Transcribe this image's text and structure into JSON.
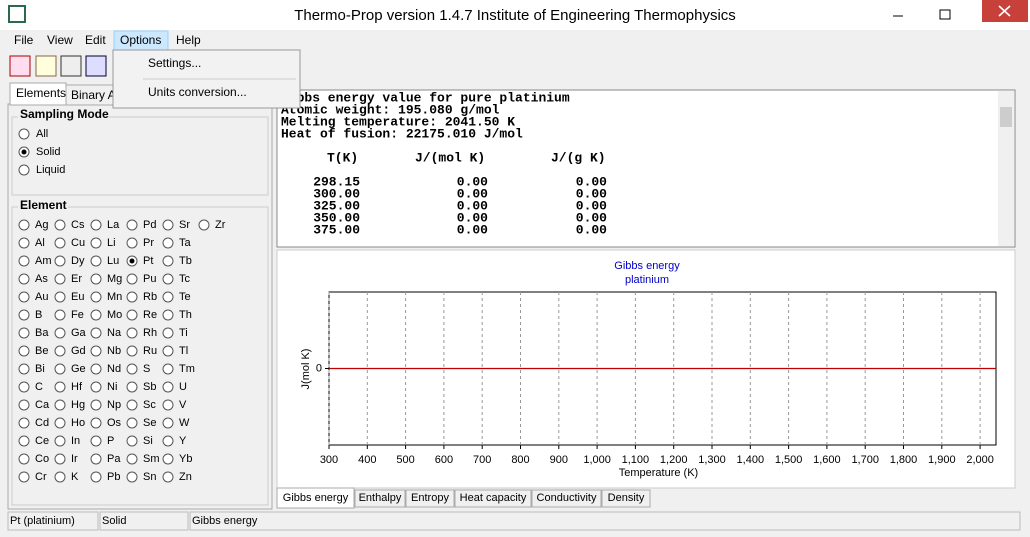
{
  "window": {
    "title": "Thermo-Prop version 1.4.7  Institute of Engineering Thermophysics"
  },
  "menu": [
    "File",
    "View",
    "Edit",
    "Options",
    "Help"
  ],
  "dropdown": [
    "Settings...",
    "Units conversion..."
  ],
  "left_tabs": [
    "Elements",
    "Binary A"
  ],
  "sampling_mode": {
    "title": "Sampling Mode",
    "options": [
      "All",
      "Solid",
      "Liquid"
    ],
    "selected": "Solid"
  },
  "element": {
    "title": "Element",
    "selected": "Pt",
    "rows": [
      [
        "Ag",
        "Cs",
        "La",
        "Pd",
        "Sr",
        "Zr"
      ],
      [
        "Al",
        "Cu",
        "Li",
        "Pr",
        "Ta"
      ],
      [
        "Am",
        "Dy",
        "Lu",
        "Pt",
        "Tb"
      ],
      [
        "As",
        "Er",
        "Mg",
        "Pu",
        "Tc"
      ],
      [
        "Au",
        "Eu",
        "Mn",
        "Rb",
        "Te"
      ],
      [
        "B",
        "Fe",
        "Mo",
        "Re",
        "Th"
      ],
      [
        "Ba",
        "Ga",
        "Na",
        "Rh",
        "Ti"
      ],
      [
        "Be",
        "Gd",
        "Nb",
        "Ru",
        "Tl"
      ],
      [
        "Bi",
        "Ge",
        "Nd",
        "S",
        "Tm"
      ],
      [
        "C",
        "Hf",
        "Ni",
        "Sb",
        "U"
      ],
      [
        "Ca",
        "Hg",
        "Np",
        "Sc",
        "V"
      ],
      [
        "Cd",
        "Ho",
        "Os",
        "Se",
        "W"
      ],
      [
        "Ce",
        "In",
        "P",
        "Si",
        "Y"
      ],
      [
        "Co",
        "Ir",
        "Pa",
        "Sm",
        "Yb"
      ],
      [
        "Cr",
        "K",
        "Pb",
        "Sn",
        "Zn"
      ]
    ]
  },
  "output": {
    "lines": [
      "Gibbs energy value for pure platinium",
      "Atomic weight: 195.080 g/mol",
      "Melting temperature: 2041.50 K",
      "Heat of fusion: 22175.010 J/mol"
    ],
    "table": {
      "header": [
        "T(K)",
        "J/(mol K)",
        "J/(g K)"
      ],
      "rows": [
        [
          "298.15",
          "0.00",
          "0.00"
        ],
        [
          "300.00",
          "0.00",
          "0.00"
        ],
        [
          "325.00",
          "0.00",
          "0.00"
        ],
        [
          "350.00",
          "0.00",
          "0.00"
        ],
        [
          "375.00",
          "0.00",
          "0.00"
        ]
      ]
    }
  },
  "chart_data": {
    "type": "line",
    "title": "Gibbs energy",
    "subtitle": "platinium",
    "xlabel": "Temperature (K)",
    "ylabel": "J(mol K)",
    "x": [
      300,
      2041.5
    ],
    "values": [
      0,
      0
    ],
    "color": "#c00000",
    "grid": "x",
    "xlim": [
      300,
      2041.5
    ],
    "xticks": [
      300,
      400,
      500,
      600,
      700,
      800,
      900,
      {
        "value": 1000,
        "label": "1,000"
      },
      {
        "value": 1100,
        "label": "1,100"
      },
      {
        "value": 1200,
        "label": "1,200"
      },
      {
        "value": 1300,
        "label": "1,300"
      },
      {
        "value": 1400,
        "label": "1,400"
      },
      {
        "value": 1500,
        "label": "1,500"
      },
      {
        "value": 1600,
        "label": "1,600"
      },
      {
        "value": 1700,
        "label": "1,700"
      },
      {
        "value": 1800,
        "label": "1,800"
      },
      {
        "value": 1900,
        "label": "1,900"
      },
      {
        "value": 2000,
        "label": "2,000"
      }
    ],
    "ylim": [
      -1,
      1
    ],
    "yticks": [
      0
    ]
  },
  "bottom_tabs": [
    "Gibbs energy",
    "Enthalpy",
    "Entropy",
    "Heat capacity",
    "Conductivity",
    "Density"
  ],
  "status_bar": [
    "Pt (platinium)",
    "Solid",
    "Gibbs energy"
  ]
}
